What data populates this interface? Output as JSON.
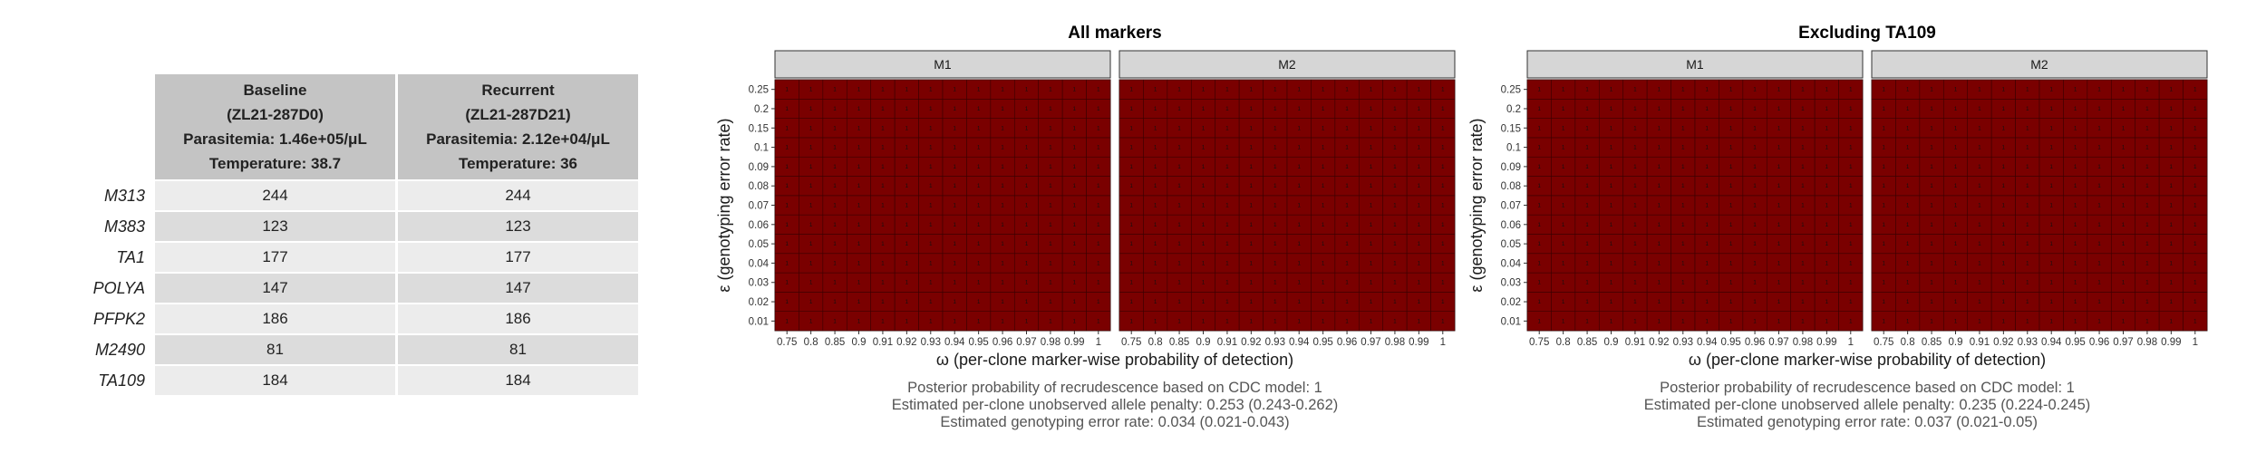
{
  "table": {
    "columns": [
      {
        "line1": "Baseline",
        "line2": "(ZL21-287D0)",
        "line3": "Parasitemia: 1.46e+05/μL",
        "line4": "Temperature: 38.7"
      },
      {
        "line1": "Recurrent",
        "line2": "(ZL21-287D21)",
        "line3": "Parasitemia: 2.12e+04/μL",
        "line4": "Temperature: 36"
      }
    ],
    "rows": [
      {
        "marker": "M313",
        "baseline": "244",
        "recurrent": "244"
      },
      {
        "marker": "M383",
        "baseline": "123",
        "recurrent": "123"
      },
      {
        "marker": "TA1",
        "baseline": "177",
        "recurrent": "177"
      },
      {
        "marker": "POLYA",
        "baseline": "147",
        "recurrent": "147"
      },
      {
        "marker": "PFPK2",
        "baseline": "186",
        "recurrent": "186"
      },
      {
        "marker": "M2490",
        "baseline": "81",
        "recurrent": "81"
      },
      {
        "marker": "TA109",
        "baseline": "184",
        "recurrent": "184"
      }
    ]
  },
  "chart_data": [
    {
      "type": "heatmap",
      "title": "All markers",
      "facets": [
        "M1",
        "M2"
      ],
      "xlabel": "ω (per-clone marker-wise probability of detection)",
      "ylabel": "ε (genotyping error rate)",
      "x": [
        "0.75",
        "0.8",
        "0.85",
        "0.9",
        "0.91",
        "0.92",
        "0.93",
        "0.94",
        "0.95",
        "0.96",
        "0.97",
        "0.98",
        "0.99",
        "1"
      ],
      "y": [
        "0.01",
        "0.02",
        "0.03",
        "0.04",
        "0.05",
        "0.06",
        "0.07",
        "0.08",
        "0.09",
        "0.1",
        "0.15",
        "0.2",
        "0.25"
      ],
      "value": 1,
      "fill_color": "#7a0000",
      "captions": [
        "Posterior probability of recrudescence based on CDC model: 1",
        "Estimated per-clone unobserved allele penalty: 0.253 (0.243-0.262)",
        "Estimated genotyping error rate: 0.034 (0.021-0.043)"
      ]
    },
    {
      "type": "heatmap",
      "title": "Excluding TA109",
      "facets": [
        "M1",
        "M2"
      ],
      "xlabel": "ω (per-clone marker-wise probability of detection)",
      "ylabel": "ε (genotyping error rate)",
      "x": [
        "0.75",
        "0.8",
        "0.85",
        "0.9",
        "0.91",
        "0.92",
        "0.93",
        "0.94",
        "0.95",
        "0.96",
        "0.97",
        "0.98",
        "0.99",
        "1"
      ],
      "y": [
        "0.01",
        "0.02",
        "0.03",
        "0.04",
        "0.05",
        "0.06",
        "0.07",
        "0.08",
        "0.09",
        "0.1",
        "0.15",
        "0.2",
        "0.25"
      ],
      "value": 1,
      "fill_color": "#7a0000",
      "captions": [
        "Posterior probability of recrudescence based on CDC model: 1",
        "Estimated per-clone unobserved allele penalty: 0.235 (0.224-0.245)",
        "Estimated genotyping error rate: 0.037 (0.021-0.05)"
      ]
    }
  ]
}
